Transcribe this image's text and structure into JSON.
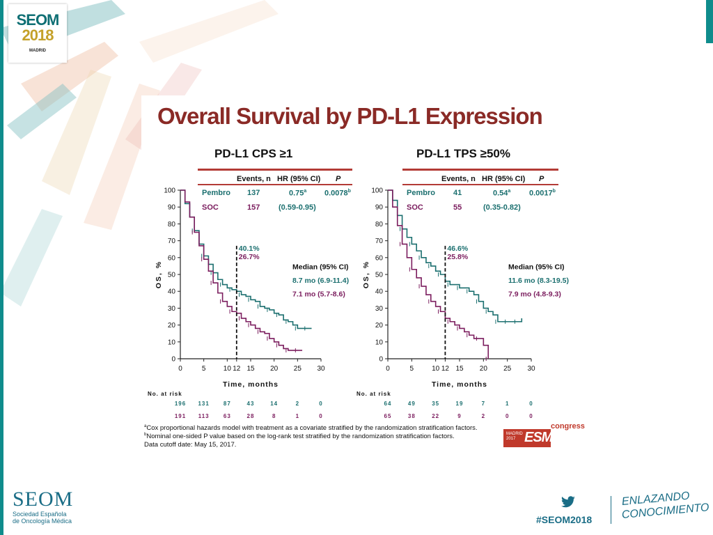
{
  "header": {
    "logo_line1": "SEOM",
    "logo_line2": "2018",
    "logo_line3": "MADRID"
  },
  "slide": {
    "title": "Overall Survival by PD-L1 Expression",
    "footnotes": [
      "Cox proportional hazards model with treatment as a covariate stratified by the randomization stratification factors.",
      "Nominal one-sided P value based on the log-rank test stratified by the randomization stratification factors.",
      "Data cutoff date: May 15, 2017."
    ],
    "footnote_marks": [
      "a",
      "b"
    ],
    "esmo": {
      "madrid": "MADRID",
      "year": "2017",
      "name": "ESMO",
      "congress": "congress"
    }
  },
  "footer": {
    "seom": "SEOM",
    "seom_sub1": "Sociedad Española",
    "seom_sub2": "de Oncología Médica",
    "hashtag": "#SEOM2018",
    "tagline1": "ENLAZANDO",
    "tagline2": "CONOCIMIENTO"
  },
  "colors": {
    "pembro": "#1b6f6f",
    "soc": "#7b1d5e",
    "title": "#8a2a26",
    "table_line": "#b33b36",
    "brand": "#1a6d86"
  },
  "chart_data": [
    {
      "type": "line",
      "title": "PD-L1 CPS ≥1",
      "xlabel": "Time, months",
      "ylabel": "OS, %",
      "xlim": [
        0,
        30
      ],
      "ylim": [
        0,
        100
      ],
      "xticks": [
        0,
        5,
        10,
        12,
        15,
        20,
        25,
        30
      ],
      "yticks": [
        0,
        10,
        20,
        30,
        40,
        50,
        60,
        70,
        80,
        90,
        100
      ],
      "table_headers": [
        "Events, n",
        "HR (95% CI)",
        "P"
      ],
      "table_rows": [
        {
          "arm": "Pembro",
          "events": "137",
          "hr": "0.75",
          "hr_sup": "a",
          "p": "0.0078",
          "p_sup": "b"
        },
        {
          "arm": "SOC",
          "events": "157",
          "hr": "(0.59-0.95)",
          "hr_sup": "",
          "p": "",
          "p_sup": ""
        }
      ],
      "landmark_x": 12,
      "landmark_labels": [
        "40.1%",
        "26.7%"
      ],
      "median_title": "Median (95% CI)",
      "median_rows": [
        "8.7 mo (6.9-11.4)",
        "7.1 mo (5.7-8.6)"
      ],
      "series": [
        {
          "name": "Pembro",
          "x": [
            0,
            1,
            2,
            3,
            4,
            5,
            6,
            7,
            8,
            9,
            10,
            11,
            12,
            13,
            14,
            15,
            16,
            17,
            18,
            19,
            20,
            21,
            22,
            23,
            24,
            25,
            26,
            27,
            28
          ],
          "y": [
            100,
            92,
            84,
            76,
            68,
            61,
            56,
            51,
            47,
            44,
            42,
            41,
            40,
            38,
            37,
            35,
            34,
            31,
            30,
            29,
            27,
            26,
            23,
            22,
            20,
            18,
            18,
            18,
            18
          ]
        },
        {
          "name": "SOC",
          "x": [
            0,
            1,
            2,
            3,
            4,
            5,
            6,
            7,
            8,
            9,
            10,
            11,
            12,
            13,
            14,
            15,
            16,
            17,
            18,
            19,
            20,
            21,
            22,
            23,
            24,
            25,
            26
          ],
          "y": [
            100,
            93,
            84,
            75,
            67,
            59,
            52,
            45,
            39,
            34,
            31,
            28,
            27,
            24,
            22,
            20,
            18,
            16,
            15,
            12,
            10,
            8,
            6,
            5,
            5,
            5,
            5
          ]
        }
      ],
      "at_risk_title": "No. at risk",
      "at_risk": [
        {
          "name": "Pembro",
          "values": [
            "196",
            "131",
            "87",
            "43",
            "14",
            "2",
            "0"
          ]
        },
        {
          "name": "SOC",
          "values": [
            "191",
            "113",
            "63",
            "28",
            "8",
            "1",
            "0"
          ]
        }
      ]
    },
    {
      "type": "line",
      "title": "PD-L1 TPS ≥50%",
      "xlabel": "Time, months",
      "ylabel": "OS, %",
      "xlim": [
        0,
        30
      ],
      "ylim": [
        0,
        100
      ],
      "xticks": [
        0,
        5,
        10,
        12,
        15,
        20,
        25,
        30
      ],
      "yticks": [
        0,
        10,
        20,
        30,
        40,
        50,
        60,
        70,
        80,
        90,
        100
      ],
      "table_headers": [
        "Events, n",
        "HR (95% CI)",
        "P"
      ],
      "table_rows": [
        {
          "arm": "Pembro",
          "events": "41",
          "hr": "0.54",
          "hr_sup": "a",
          "p": "0.0017",
          "p_sup": "b"
        },
        {
          "arm": "SOC",
          "events": "55",
          "hr": "(0.35-0.82)",
          "hr_sup": "",
          "p": "",
          "p_sup": ""
        }
      ],
      "landmark_x": 12,
      "landmark_labels": [
        "46.6%",
        "25.8%"
      ],
      "median_title": "Median (95% CI)",
      "median_rows": [
        "11.6 mo (8.3-19.5)",
        "7.9 mo (4.8-9.3)"
      ],
      "series": [
        {
          "name": "Pembro",
          "x": [
            0,
            1,
            2,
            3,
            4,
            5,
            6,
            7,
            8,
            9,
            10,
            11,
            12,
            13,
            14,
            15,
            16,
            17,
            18,
            19,
            20,
            21,
            22,
            23,
            24,
            25,
            26,
            27,
            28
          ],
          "y": [
            100,
            94,
            85,
            77,
            72,
            68,
            64,
            60,
            57,
            55,
            52,
            50,
            46,
            44,
            44,
            42,
            42,
            40,
            38,
            34,
            30,
            28,
            26,
            22,
            22,
            22,
            22,
            22,
            24
          ]
        },
        {
          "name": "SOC",
          "x": [
            0,
            1,
            2,
            3,
            4,
            5,
            6,
            7,
            8,
            9,
            10,
            11,
            12,
            13,
            14,
            15,
            16,
            17,
            18,
            19,
            20,
            21
          ],
          "y": [
            100,
            90,
            79,
            68,
            60,
            53,
            48,
            43,
            38,
            34,
            31,
            28,
            24,
            22,
            20,
            18,
            16,
            14,
            12,
            12,
            8,
            0
          ]
        }
      ],
      "at_risk_title": "No. at risk",
      "at_risk": [
        {
          "name": "Pembro",
          "values": [
            "64",
            "49",
            "35",
            "19",
            "7",
            "1",
            "0"
          ]
        },
        {
          "name": "SOC",
          "values": [
            "65",
            "38",
            "22",
            "9",
            "2",
            "0",
            "0"
          ]
        }
      ]
    }
  ]
}
